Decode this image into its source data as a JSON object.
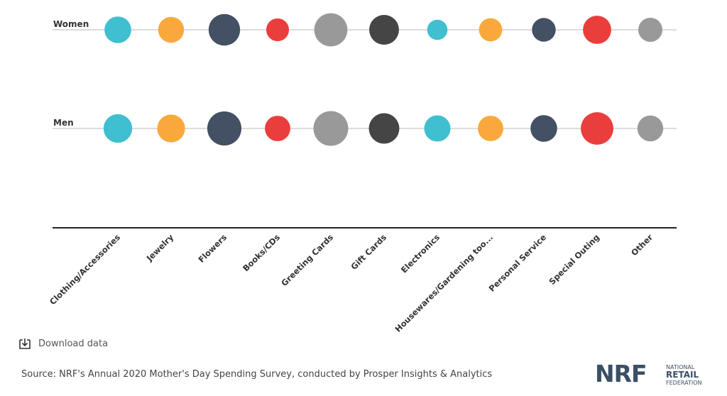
{
  "chart_data": {
    "type": "bubble",
    "categories": [
      "Clothing/Accessories",
      "Jewelry",
      "Flowers",
      "Books/CDs",
      "Greeting Cards",
      "Gift Cards",
      "Electronics",
      "Housewares/Gardening too...",
      "Personal Service",
      "Special Outing",
      "Other"
    ],
    "series": [
      {
        "name": "Women",
        "values": [
          33,
          31,
          46,
          24,
          51,
          41,
          19,
          25,
          26,
          37,
          27
        ]
      },
      {
        "name": "Men",
        "values": [
          38,
          36,
          54,
          30,
          56,
          43,
          32,
          30,
          33,
          49,
          31
        ]
      }
    ],
    "colors": [
      "#3fbfcf",
      "#f9a93c",
      "#445063",
      "#ea3e3c",
      "#999999",
      "#454545",
      "#3fbfcf",
      "#f9a93c",
      "#445063",
      "#ea3e3c",
      "#999999"
    ],
    "note": "values estimated from bubble size"
  },
  "actions": {
    "download_label": "Download data",
    "download_icon": "download-icon"
  },
  "footer": {
    "source": "Source: NRF's Annual 2020 Mother's Day Spending Survey, conducted by Prosper Insights & Analytics"
  },
  "logo": {
    "mark": "NRF",
    "line1": "NATIONAL",
    "line2": "RETAIL",
    "line3": "FEDERATION",
    "color": "#3b4f66"
  }
}
